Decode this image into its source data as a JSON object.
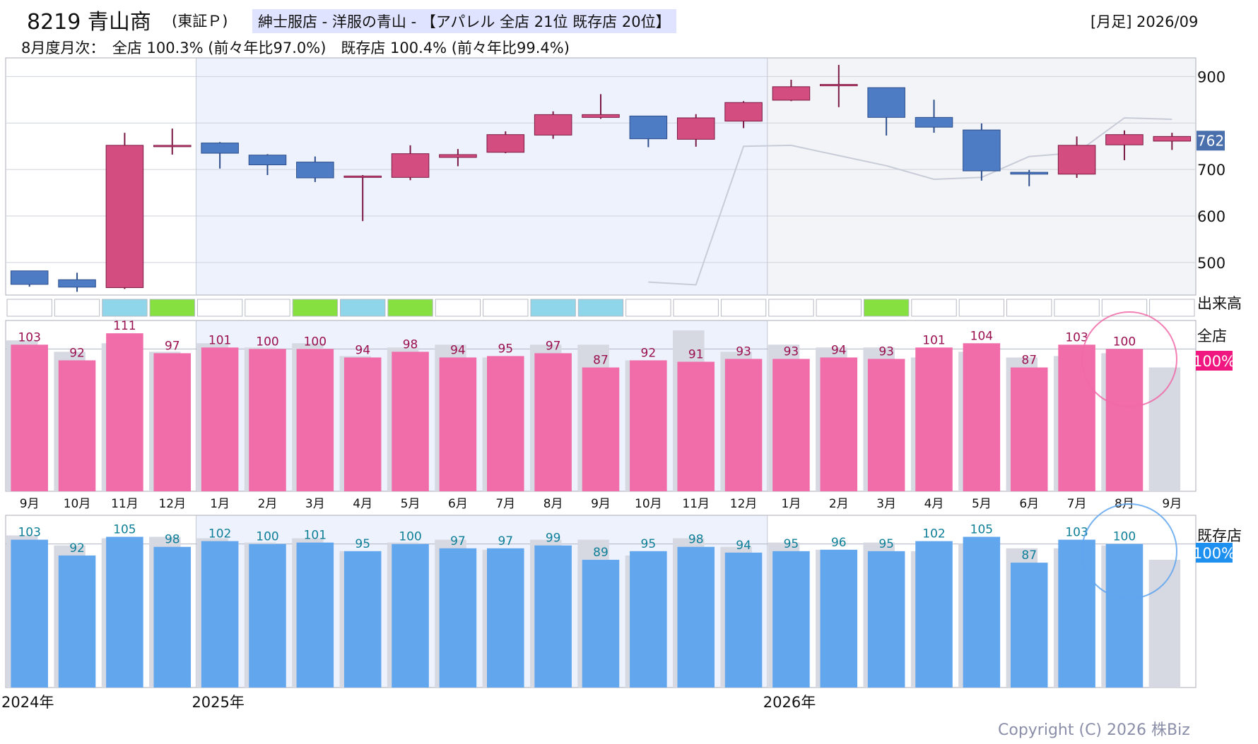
{
  "header": {
    "title": "8219 青山商",
    "market": "(東証Ｐ)",
    "category": "紳士服店 - 洋服の青山 - 【アパレル 全店 21位 既存店 20位】",
    "period": "[月足] 2026/09",
    "subtitle": "8月度月次：　全店 100.3% (前々年比97.0%)　既存店 100.4% (前々年比99.4%)"
  },
  "labels": {
    "volume": "出来高",
    "all_store": "全店",
    "existing_store": "既存店",
    "all_store_badge": "100%",
    "existing_store_badge": "100%"
  },
  "years": [
    {
      "label": "2024年",
      "index": 0
    },
    {
      "label": "2025年",
      "index": 4
    },
    {
      "label": "2026年",
      "index": 16
    }
  ],
  "copyright": "Copyright (C) 2026 株Biz",
  "colors": {
    "up": "#d44d80",
    "down": "#4d7cc4",
    "all_store_bar": "#f06aa8",
    "existing_store_bar": "#5fa4ee",
    "prev_year_bar": "#d6d8e2",
    "all_store_label": "#9a1050",
    "existing_store_label": "#0e7f98",
    "price_badge": "#4a6fad",
    "all_store_badge": "#f01880",
    "existing_store_badge": "#1e90f0",
    "shade": "#eef2fd"
  },
  "chart_data": [
    {
      "type": "candlestick",
      "name": "price",
      "ylim": [
        430,
        940
      ],
      "yticks": [
        500,
        600,
        700,
        900
      ],
      "last_price": "762",
      "candles": [
        {
          "o": 482,
          "h": 482,
          "l": 448,
          "c": 453
        },
        {
          "o": 463,
          "h": 478,
          "l": 437,
          "c": 447
        },
        {
          "o": 446,
          "h": 779,
          "l": 443,
          "c": 752
        },
        {
          "o": 752,
          "h": 788,
          "l": 732,
          "c": 752
        },
        {
          "o": 757,
          "h": 759,
          "l": 702,
          "c": 735
        },
        {
          "o": 731,
          "h": 733,
          "l": 688,
          "c": 710
        },
        {
          "o": 716,
          "h": 728,
          "l": 673,
          "c": 682
        },
        {
          "o": 686,
          "h": 688,
          "l": 589,
          "c": 686
        },
        {
          "o": 683,
          "h": 752,
          "l": 677,
          "c": 734
        },
        {
          "o": 726,
          "h": 744,
          "l": 707,
          "c": 732
        },
        {
          "o": 737,
          "h": 782,
          "l": 735,
          "c": 775
        },
        {
          "o": 774,
          "h": 825,
          "l": 766,
          "c": 818
        },
        {
          "o": 812,
          "h": 862,
          "l": 809,
          "c": 818
        },
        {
          "o": 815,
          "h": 813,
          "l": 748,
          "c": 766
        },
        {
          "o": 765,
          "h": 819,
          "l": 749,
          "c": 811
        },
        {
          "o": 804,
          "h": 847,
          "l": 789,
          "c": 844
        },
        {
          "o": 849,
          "h": 893,
          "l": 847,
          "c": 878
        },
        {
          "o": 883,
          "h": 925,
          "l": 834,
          "c": 883
        },
        {
          "o": 876,
          "h": 876,
          "l": 773,
          "c": 812
        },
        {
          "o": 812,
          "h": 850,
          "l": 779,
          "c": 791
        },
        {
          "o": 785,
          "h": 799,
          "l": 676,
          "c": 697
        },
        {
          "o": 694,
          "h": 699,
          "l": 664,
          "c": 690
        },
        {
          "o": 690,
          "h": 771,
          "l": 682,
          "c": 752
        },
        {
          "o": 753,
          "h": 784,
          "l": 720,
          "c": 775
        },
        {
          "o": 761,
          "h": 779,
          "l": 742,
          "c": 771
        }
      ],
      "moving_average": [
        null,
        null,
        null,
        null,
        null,
        null,
        null,
        null,
        null,
        null,
        null,
        null,
        null,
        458,
        452,
        750,
        752,
        730,
        708,
        679,
        683,
        728,
        736,
        811,
        808
      ]
    },
    {
      "type": "bar",
      "name": "全店",
      "categories": [
        "9月",
        "10月",
        "11月",
        "12月",
        "1月",
        "2月",
        "3月",
        "4月",
        "5月",
        "6月",
        "7月",
        "8月",
        "9月",
        "10月",
        "11月",
        "12月",
        "1月",
        "2月",
        "3月",
        "4月",
        "5月",
        "6月",
        "7月",
        "8月",
        "9月"
      ],
      "values": [
        103,
        92,
        111,
        97,
        101,
        100,
        100,
        94,
        98,
        94,
        95,
        97,
        87,
        92,
        91,
        93,
        93,
        94,
        93,
        101,
        104,
        87,
        103,
        100,
        null
      ],
      "prev_year_values": [
        106,
        98,
        104,
        98,
        104,
        101,
        104,
        95,
        101,
        103,
        94,
        103,
        103,
        92,
        113,
        98,
        103,
        101,
        101,
        94,
        98,
        94,
        95,
        97,
        87
      ],
      "ylim": [
        0,
        120
      ],
      "reference": 100
    },
    {
      "type": "bar",
      "name": "既存店",
      "categories": [
        "9月",
        "10月",
        "11月",
        "12月",
        "1月",
        "2月",
        "3月",
        "4月",
        "5月",
        "6月",
        "7月",
        "8月",
        "9月",
        "10月",
        "11月",
        "12月",
        "1月",
        "2月",
        "3月",
        "4月",
        "5月",
        "6月",
        "7月",
        "8月",
        "9月"
      ],
      "values": [
        103,
        92,
        105,
        98,
        102,
        100,
        101,
        95,
        100,
        97,
        97,
        99,
        89,
        95,
        98,
        94,
        95,
        96,
        95,
        102,
        105,
        87,
        103,
        100,
        null
      ],
      "prev_year_values": [
        106,
        99,
        104,
        105,
        104,
        101,
        104,
        95,
        101,
        103,
        96,
        103,
        103,
        92,
        104,
        98,
        101,
        96,
        101,
        95,
        100,
        97,
        97,
        99,
        89
      ],
      "ylim": [
        0,
        120
      ],
      "reference": 100
    }
  ],
  "volume_cells": [
    "white",
    "white",
    "blue",
    "green",
    "white",
    "white",
    "green",
    "blue",
    "green",
    "white",
    "white",
    "blue",
    "blue",
    "white",
    "white",
    "white",
    "white",
    "white",
    "green",
    "white",
    "white",
    "white",
    "white",
    "white",
    "white"
  ]
}
